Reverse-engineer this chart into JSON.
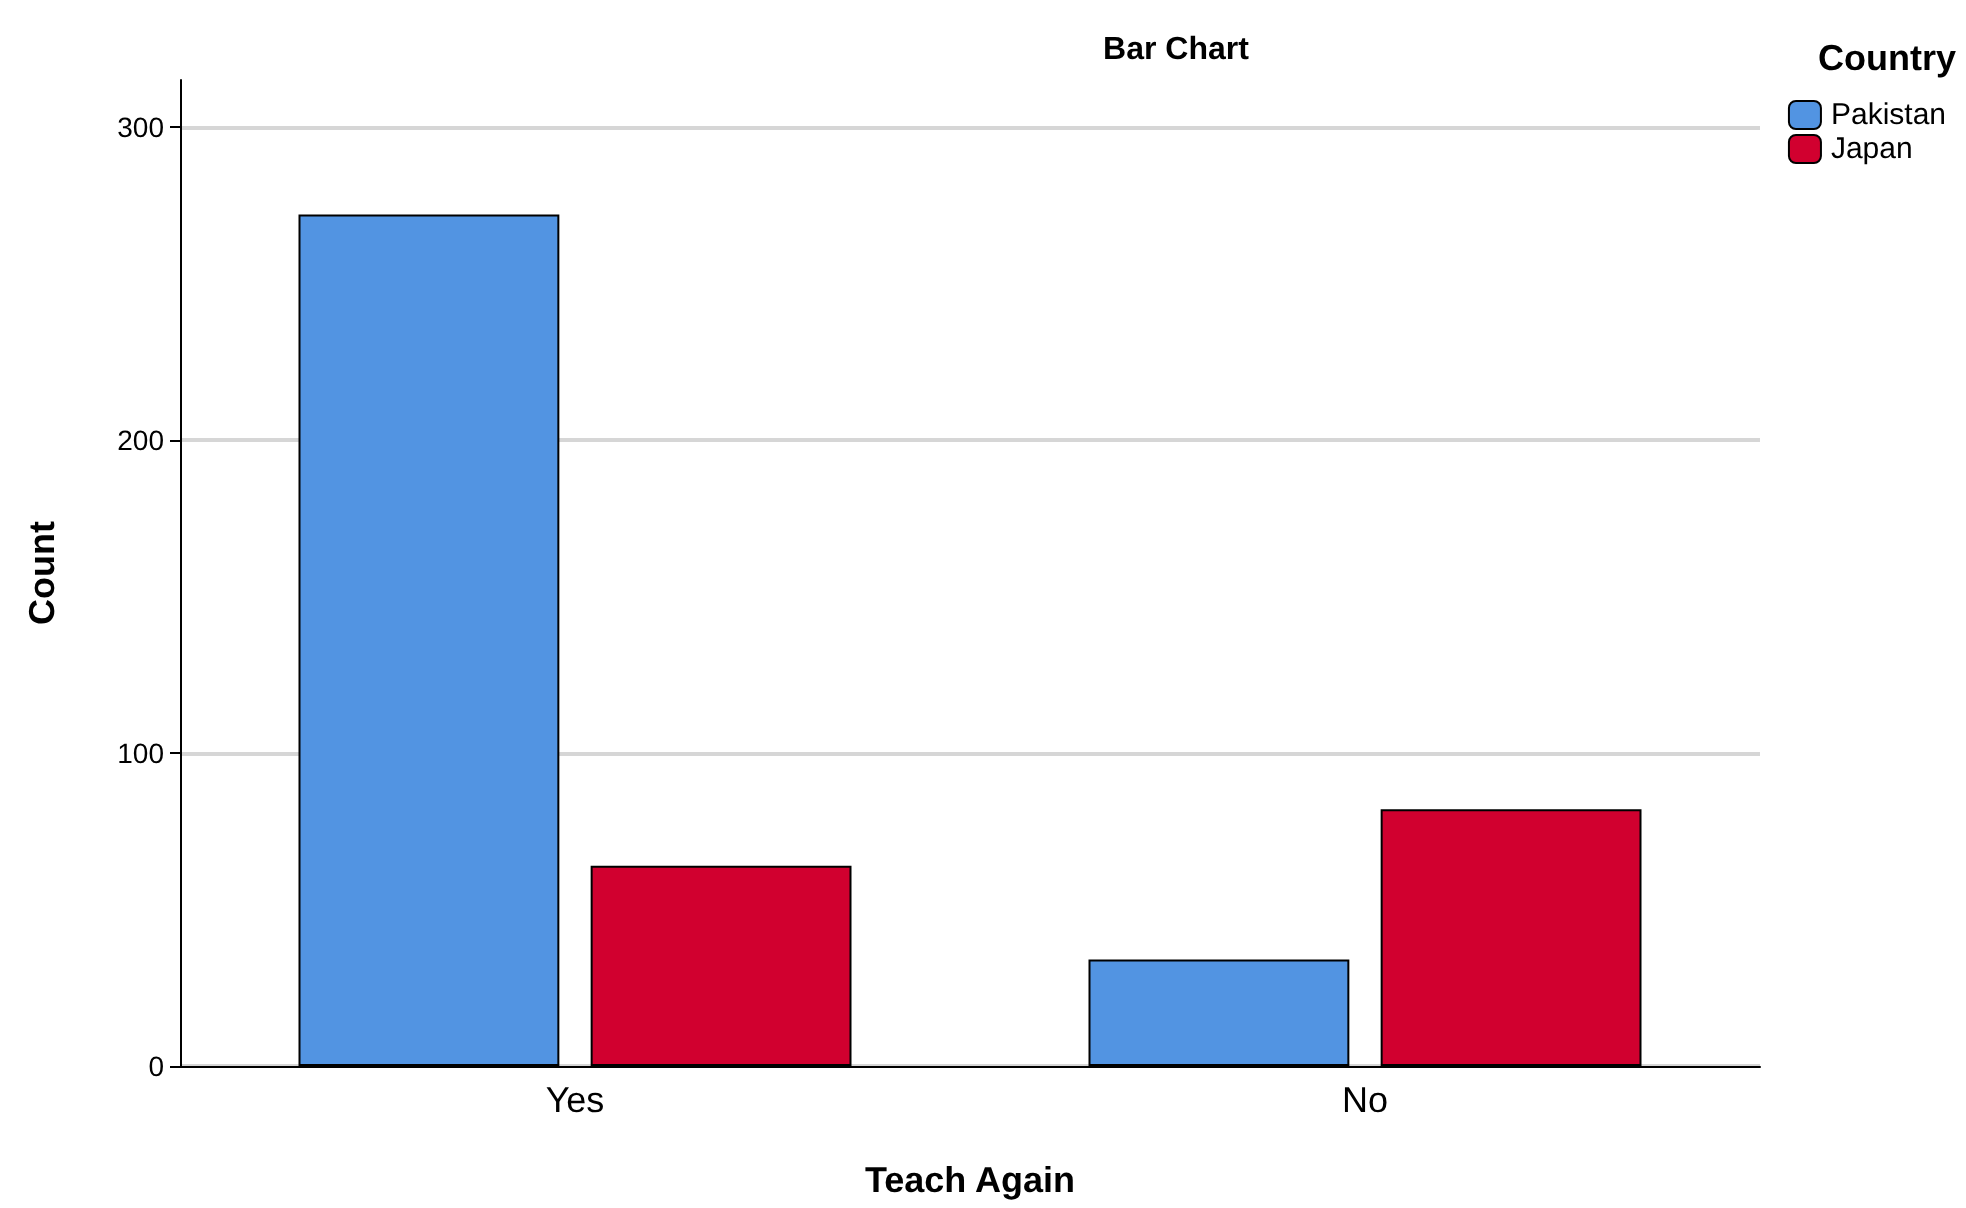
{
  "chart_data": {
    "type": "bar",
    "title": "Bar Chart",
    "xlabel": "Teach Again",
    "ylabel": "Count",
    "legend_title": "Country",
    "categories": [
      "Yes",
      "No"
    ],
    "series": [
      {
        "name": "Pakistan",
        "color": "#5294e2",
        "values": [
          272,
          34
        ]
      },
      {
        "name": "Japan",
        "color": "#d1002f",
        "values": [
          64,
          82
        ]
      }
    ],
    "ylim": [
      0,
      315
    ],
    "yticks": [
      0,
      100,
      200,
      300
    ],
    "grid": "y",
    "legend": "top right"
  }
}
